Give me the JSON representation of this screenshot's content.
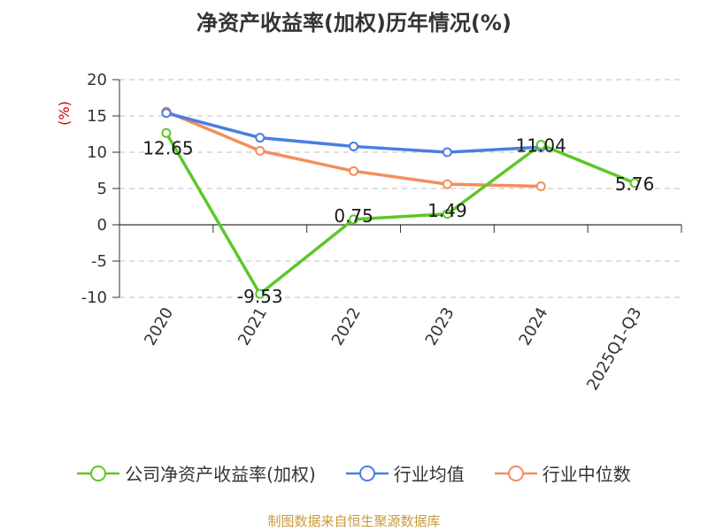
{
  "chart_data": {
    "type": "line",
    "title": "净资产收益率(加权)历年情况(%)",
    "ylabel": "(%)",
    "ylim": [
      -10,
      20
    ],
    "yticks": [
      20,
      15,
      10,
      5,
      0,
      -5,
      -10
    ],
    "categories": [
      "2020",
      "2021",
      "2022",
      "2023",
      "2024",
      "2025Q1-Q3"
    ],
    "series": [
      {
        "name": "公司净资产收益率(加权)",
        "color": "#5cc827",
        "values": [
          12.65,
          -9.53,
          0.75,
          1.49,
          11.04,
          5.76
        ],
        "labels": [
          "12.65",
          "-9.53",
          "0.75",
          "1.49",
          "11.04",
          "5.76"
        ]
      },
      {
        "name": "行业均值",
        "color": "#4a7ee0",
        "values": [
          15.4,
          12.0,
          10.8,
          10.0,
          10.7,
          null
        ]
      },
      {
        "name": "行业中位数",
        "color": "#f58d5c",
        "values": [
          15.6,
          10.2,
          7.4,
          5.6,
          5.3,
          null
        ]
      }
    ],
    "grid": true,
    "legend": "bottom"
  },
  "source": "制图数据来自恒生聚源数据库",
  "axis_color": "#333333",
  "ylabel_color": "#cc0000",
  "grid_color": "#cccccc"
}
